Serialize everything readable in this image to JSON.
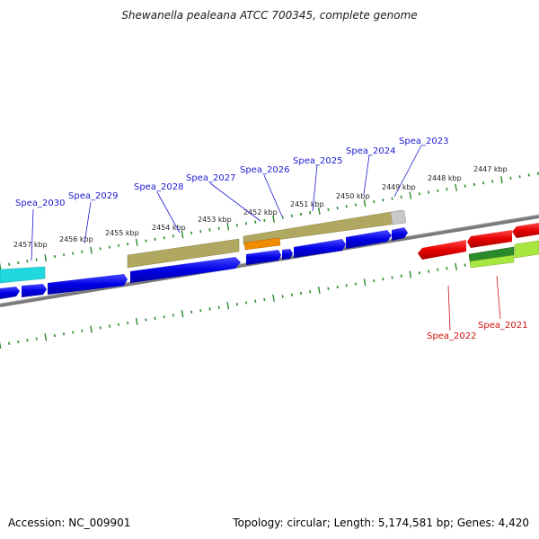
{
  "title": "Shewanella pealeana ATCC 700345, complete genome",
  "footer": {
    "accession": "Accession: NC_009901",
    "summary": "Topology: circular; Length: 5,174,581 bp; Genes: 4,420"
  },
  "colors": {
    "forward_cds": "#0000e6",
    "reverse_cds": "#e60000",
    "backbone": "#7a7a7a",
    "tick": "#2a8a2a",
    "forward_label": "#1a1ad0",
    "reverse_label": "#d01010",
    "cyan_feature": "#22d8e0",
    "olive_feature": "#b0a860",
    "orange_feature": "#f08c00",
    "green_feature": "#2a8a2a",
    "lime_feature": "#a8e640",
    "grey_feature": "#c8c8c8"
  },
  "scale": {
    "tick_labels": [
      "2457 kbp",
      "2456 kbp",
      "2455 kbp",
      "2454 kbp",
      "2453 kbp",
      "2452 kbp",
      "2451 kbp",
      "2450 kbp",
      "2449 kbp",
      "2448 kbp",
      "2447 kbp"
    ]
  },
  "forward_genes": [
    "Spea_2030",
    "Spea_2029",
    "Spea_2028",
    "Spea_2027",
    "Spea_2026",
    "Spea_2025",
    "Spea_2024",
    "Spea_2023"
  ],
  "reverse_genes": [
    "Spea_2022",
    "Spea_2021"
  ]
}
